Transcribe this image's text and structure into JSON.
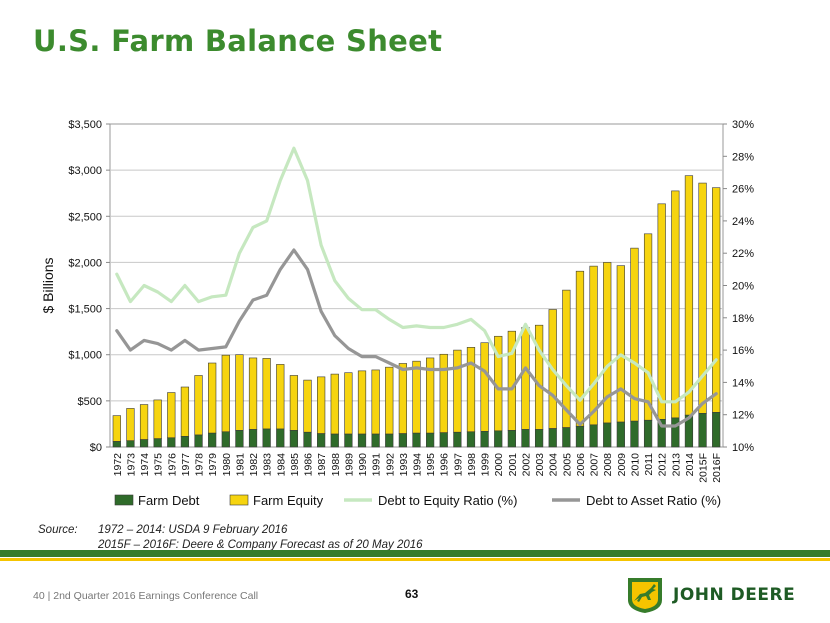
{
  "page": {
    "title": "U.S. Farm Balance Sheet"
  },
  "colors": {
    "title": "#3c8b2e",
    "farm_debt": "#2f6b2a",
    "farm_equity": "#f6d40f",
    "debt_to_equity": "#c6e8c0",
    "debt_to_asset": "#969696",
    "rule_green": "#367c2b",
    "rule_yellow": "#f5c400"
  },
  "chart_data": {
    "type": "bar",
    "stacked": true,
    "ylabel": "$ Billions",
    "ylim": [
      0,
      3500
    ],
    "yticks": [
      0,
      500,
      1000,
      1500,
      2000,
      2500,
      3000,
      3500
    ],
    "ytick_labels": [
      "$0",
      "$500",
      "$1,000",
      "$1,500",
      "$2,000",
      "$2,500",
      "$3,000",
      "$3,500"
    ],
    "y2lim": [
      10,
      30
    ],
    "y2ticks": [
      10,
      12,
      14,
      16,
      18,
      20,
      22,
      24,
      26,
      28,
      30
    ],
    "y2tick_labels": [
      "10%",
      "12%",
      "14%",
      "16%",
      "18%",
      "20%",
      "22%",
      "24%",
      "26%",
      "28%",
      "30%"
    ],
    "legend_position": "bottom",
    "categories": [
      "1972",
      "1973",
      "1974",
      "1975",
      "1976",
      "1977",
      "1978",
      "1979",
      "1980",
      "1981",
      "1982",
      "1983",
      "1984",
      "1985",
      "1986",
      "1987",
      "1988",
      "1989",
      "1990",
      "1991",
      "1992",
      "1993",
      "1994",
      "1995",
      "1996",
      "1997",
      "1998",
      "1999",
      "2000",
      "2001",
      "2002",
      "2003",
      "2004",
      "2005",
      "2006",
      "2007",
      "2008",
      "2009",
      "2010",
      "2011",
      "2012",
      "2013",
      "2014",
      "2015F",
      "2016F"
    ],
    "series": [
      {
        "name": "Farm Debt",
        "kind": "bar",
        "axis": "left",
        "values": [
          60,
          68,
          80,
          90,
          100,
          115,
          130,
          150,
          165,
          180,
          190,
          195,
          195,
          180,
          160,
          145,
          140,
          140,
          140,
          140,
          140,
          145,
          150,
          150,
          155,
          160,
          165,
          170,
          175,
          180,
          190,
          190,
          200,
          210,
          225,
          240,
          260,
          270,
          280,
          290,
          300,
          315,
          345,
          365,
          375
        ]
      },
      {
        "name": "Farm Equity",
        "kind": "bar",
        "axis": "left",
        "values": [
          280,
          350,
          380,
          420,
          490,
          535,
          645,
          760,
          830,
          820,
          775,
          765,
          700,
          595,
          565,
          615,
          650,
          665,
          685,
          695,
          725,
          760,
          780,
          815,
          850,
          890,
          915,
          960,
          1025,
          1075,
          1105,
          1130,
          1290,
          1490,
          1680,
          1720,
          1740,
          1695,
          1875,
          2020,
          2335,
          2460,
          2595,
          2495,
          2435
        ]
      },
      {
        "name": "Debt to Equity Ratio (%)",
        "kind": "line",
        "axis": "right",
        "values": [
          20.7,
          19.0,
          20.0,
          19.6,
          19.0,
          20.0,
          19.0,
          19.3,
          19.4,
          22.0,
          23.6,
          24.0,
          26.5,
          28.5,
          26.5,
          22.5,
          20.3,
          19.2,
          18.5,
          18.5,
          17.9,
          17.4,
          17.5,
          17.4,
          17.4,
          17.6,
          17.9,
          17.2,
          15.6,
          15.8,
          17.6,
          16.0,
          14.8,
          13.8,
          12.9,
          13.9,
          15.0,
          15.7,
          15.2,
          14.6,
          12.8,
          12.8,
          13.4,
          14.4,
          15.4
        ]
      },
      {
        "name": "Debt to Asset Ratio (%)",
        "kind": "line",
        "axis": "right",
        "values": [
          17.2,
          16.0,
          16.6,
          16.4,
          16.0,
          16.6,
          16.0,
          16.1,
          16.2,
          17.8,
          19.1,
          19.4,
          21.0,
          22.2,
          21.0,
          18.4,
          16.9,
          16.1,
          15.6,
          15.6,
          15.2,
          14.8,
          14.9,
          14.8,
          14.8,
          14.9,
          15.2,
          14.7,
          13.6,
          13.6,
          14.9,
          13.8,
          13.2,
          12.3,
          11.4,
          12.2,
          13.1,
          13.6,
          13.0,
          12.8,
          11.3,
          11.3,
          11.8,
          12.7,
          13.3
        ]
      }
    ]
  },
  "source": {
    "label": "Source:",
    "line1": "1972 – 2014: USDA 9 February 2016",
    "line2": "2015F – 2016F: Deere & Company Forecast as of 20 May 2016"
  },
  "footer": {
    "text": "40  |  2nd Quarter 2016 Earnings Conference Call",
    "page_number": "63"
  },
  "logo": {
    "text": "JOHN DEERE"
  }
}
